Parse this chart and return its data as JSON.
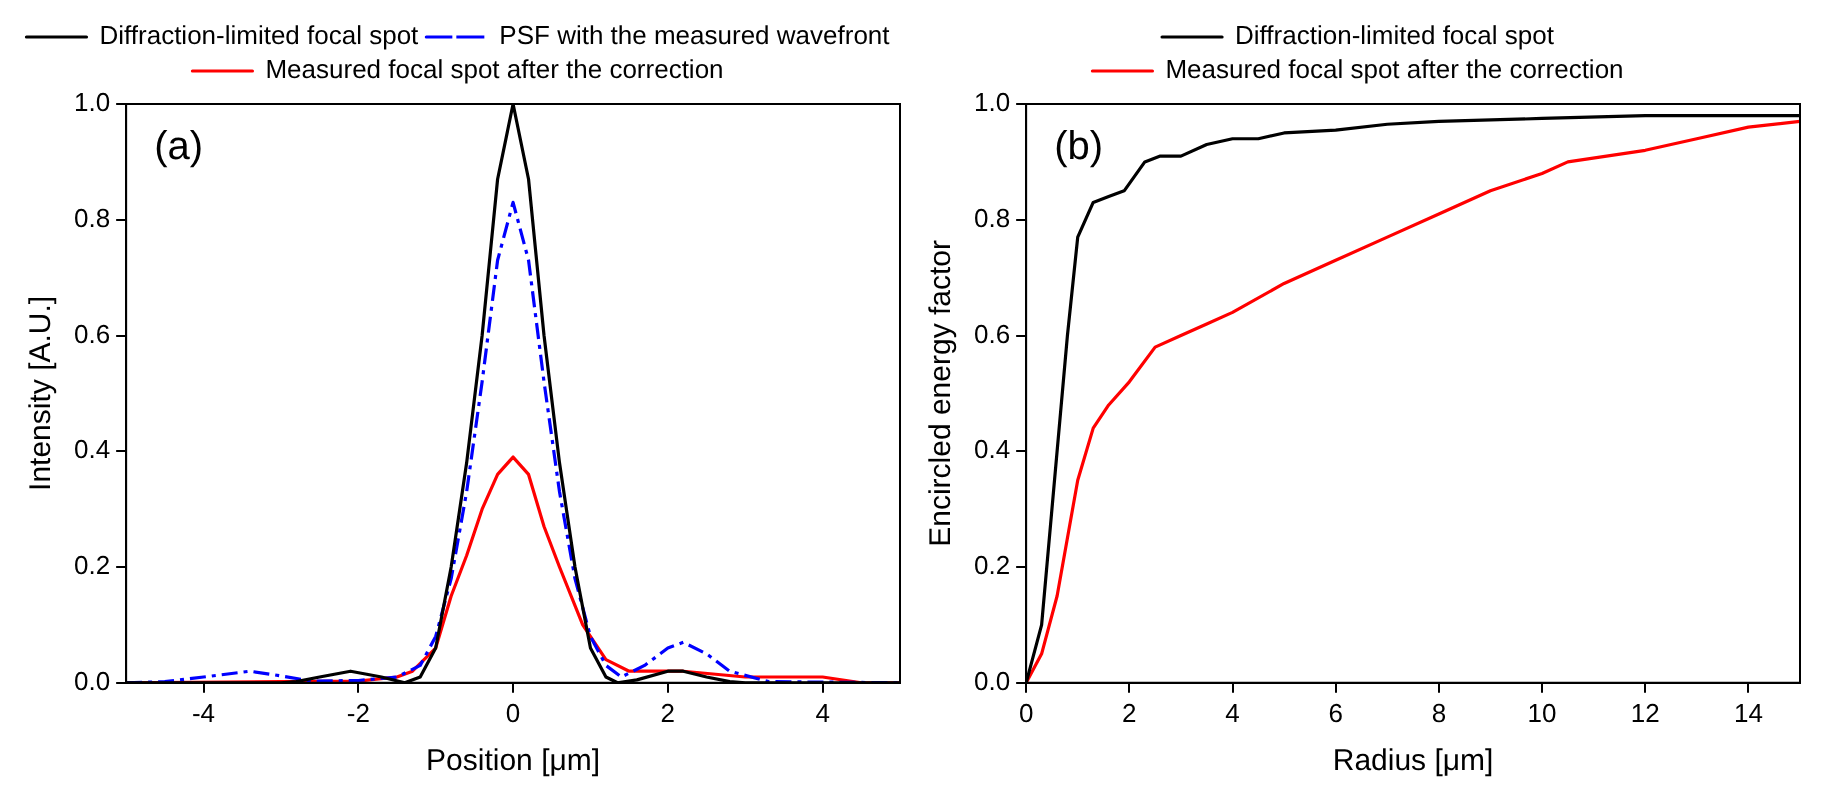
{
  "chart_data": [
    {
      "type": "line",
      "annotations": [
        "(a)"
      ],
      "xlabel": "Position [μm]",
      "ylabel": "Intensity [A.U.]",
      "xlim": [
        -5,
        5
      ],
      "xticks": [
        -4,
        -2,
        0,
        2,
        4
      ],
      "ylim": [
        0,
        1
      ],
      "yticks": [
        {
          "value": 0,
          "label": "0.0"
        },
        {
          "value": 0.2,
          "label": "0.2"
        },
        {
          "value": 0.4,
          "label": "0.4"
        },
        {
          "value": 0.6,
          "label": "0.6"
        },
        {
          "value": 0.8,
          "label": "0.8"
        },
        {
          "value": 1,
          "label": "1.0"
        }
      ],
      "grid": false,
      "legend": "top",
      "marker": "none",
      "series": [
        {
          "name": "Diffraction-limited focal spot",
          "color": "#000000",
          "line_style": "solid",
          "x": [
            -5,
            -3,
            -2.8,
            -2.5,
            -2.1,
            -1.7,
            -1.4,
            -1.2,
            -1,
            -0.8,
            -0.6,
            -0.4,
            -0.2,
            0,
            0.2,
            0.4,
            0.6,
            0.8,
            1,
            1.2,
            1.35,
            1.6,
            2,
            2.2,
            2.5,
            2.8,
            3,
            5
          ],
          "values": [
            0,
            0,
            0.002,
            0.01,
            0.02,
            0.01,
            0,
            0.01,
            0.06,
            0.2,
            0.38,
            0.6,
            0.87,
            1,
            0.87,
            0.6,
            0.38,
            0.2,
            0.06,
            0.01,
            0,
            0.005,
            0.02,
            0.02,
            0.01,
            0.002,
            0,
            0
          ]
        },
        {
          "name": "PSF with the measured wavefront",
          "color": "#0000ff",
          "line_style": "dashed",
          "x": [
            -5,
            -4.5,
            -4,
            -3.4,
            -3,
            -2.6,
            -2,
            -1.5,
            -1.2,
            -1,
            -0.8,
            -0.6,
            -0.4,
            -0.2,
            0,
            0.2,
            0.4,
            0.6,
            0.8,
            1,
            1.2,
            1.4,
            1.7,
            2,
            2.2,
            2.5,
            2.8,
            3.3,
            5
          ],
          "values": [
            0,
            0.002,
            0.01,
            0.02,
            0.012,
            0.003,
            0.004,
            0.01,
            0.03,
            0.08,
            0.18,
            0.33,
            0.52,
            0.73,
            0.83,
            0.73,
            0.52,
            0.33,
            0.18,
            0.08,
            0.03,
            0.01,
            0.03,
            0.06,
            0.07,
            0.05,
            0.02,
            0.002,
            0
          ]
        },
        {
          "name": "Measured focal spot after the correction",
          "color": "#ff0000",
          "line_style": "solid",
          "x": [
            -5,
            -3,
            -2,
            -1.5,
            -1.3,
            -1,
            -0.8,
            -0.6,
            -0.4,
            -0.2,
            0,
            0.2,
            0.4,
            0.6,
            0.9,
            1.2,
            1.5,
            2.2,
            3,
            4,
            4.5,
            5
          ],
          "values": [
            0,
            0.002,
            0.003,
            0.01,
            0.02,
            0.06,
            0.15,
            0.22,
            0.3,
            0.36,
            0.39,
            0.36,
            0.27,
            0.2,
            0.1,
            0.04,
            0.02,
            0.02,
            0.01,
            0.01,
            0,
            0
          ]
        }
      ]
    },
    {
      "type": "line",
      "annotations": [
        "(b)"
      ],
      "xlabel": "Radius [μm]",
      "ylabel": "Encircled energy factor",
      "xlim": [
        0,
        15
      ],
      "xticks": [
        0,
        2,
        4,
        6,
        8,
        10,
        12,
        14
      ],
      "ylim": [
        0,
        1
      ],
      "yticks": [
        {
          "value": 0,
          "label": "0.0"
        },
        {
          "value": 0.2,
          "label": "0.2"
        },
        {
          "value": 0.4,
          "label": "0.4"
        },
        {
          "value": 0.6,
          "label": "0.6"
        },
        {
          "value": 0.8,
          "label": "0.8"
        },
        {
          "value": 1,
          "label": "1.0"
        }
      ],
      "grid": false,
      "legend": "top",
      "marker": "none",
      "series": [
        {
          "name": "Diffraction-limited focal spot",
          "color": "#000000",
          "line_style": "solid",
          "x": [
            0,
            0.3,
            0.5,
            0.8,
            1,
            1.3,
            1.6,
            1.9,
            2.3,
            2.6,
            3,
            3.5,
            4,
            4.5,
            5,
            6,
            7,
            8,
            10,
            12,
            15
          ],
          "values": [
            0,
            0.1,
            0.3,
            0.6,
            0.77,
            0.83,
            0.84,
            0.85,
            0.9,
            0.91,
            0.91,
            0.93,
            0.94,
            0.94,
            0.95,
            0.955,
            0.965,
            0.97,
            0.975,
            0.98,
            0.98
          ]
        },
        {
          "name": "Measured focal spot after the correction",
          "color": "#ff0000",
          "line_style": "solid",
          "x": [
            0,
            0.3,
            0.6,
            1,
            1.3,
            1.6,
            2,
            2.5,
            3,
            3.5,
            4,
            5,
            6,
            7,
            8,
            9,
            10,
            10.5,
            12,
            13,
            14,
            15
          ],
          "values": [
            0,
            0.05,
            0.15,
            0.35,
            0.44,
            0.48,
            0.52,
            0.58,
            0.6,
            0.62,
            0.64,
            0.69,
            0.73,
            0.77,
            0.81,
            0.85,
            0.88,
            0.9,
            0.92,
            0.94,
            0.96,
            0.97
          ]
        }
      ]
    }
  ]
}
